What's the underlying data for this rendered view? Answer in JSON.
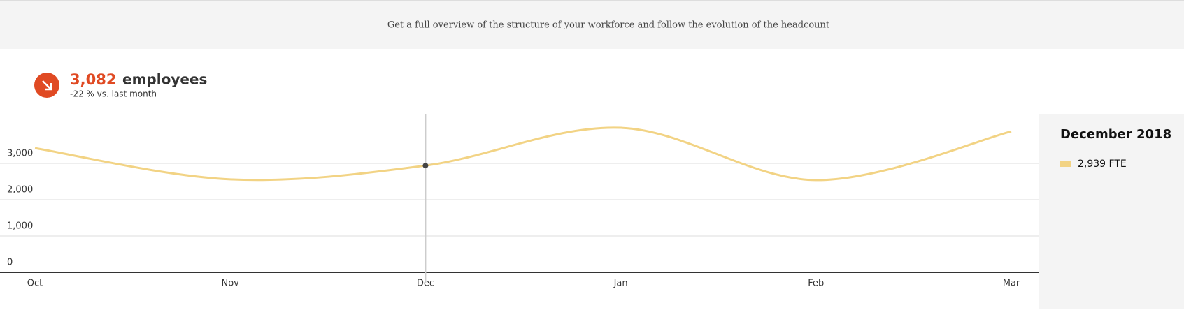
{
  "header": {
    "description": "Get a full overview of the structure of your workforce and follow the evolution of the headcount"
  },
  "kpi": {
    "value": "3,082",
    "unit": "employees",
    "change": "-22 % vs. last month"
  },
  "chart_data": {
    "type": "line",
    "categories": [
      "Oct",
      "Nov",
      "Dec",
      "Jan",
      "Feb",
      "Mar"
    ],
    "series": [
      {
        "name": "FTE",
        "color": "#f2d384",
        "values": [
          3420,
          2560,
          2939,
          3980,
          2540,
          3880
        ]
      }
    ],
    "ylim": [
      0,
      4365
    ],
    "yticks": [
      0,
      {
        "value": 1000,
        "label": "1,000"
      },
      {
        "value": 2000,
        "label": "2,000"
      },
      {
        "value": 3000,
        "label": "3,000"
      }
    ],
    "grid": true,
    "highlight_category": "Dec",
    "tooltip": {
      "title": "December 2018",
      "label": "2,939 FTE"
    }
  }
}
